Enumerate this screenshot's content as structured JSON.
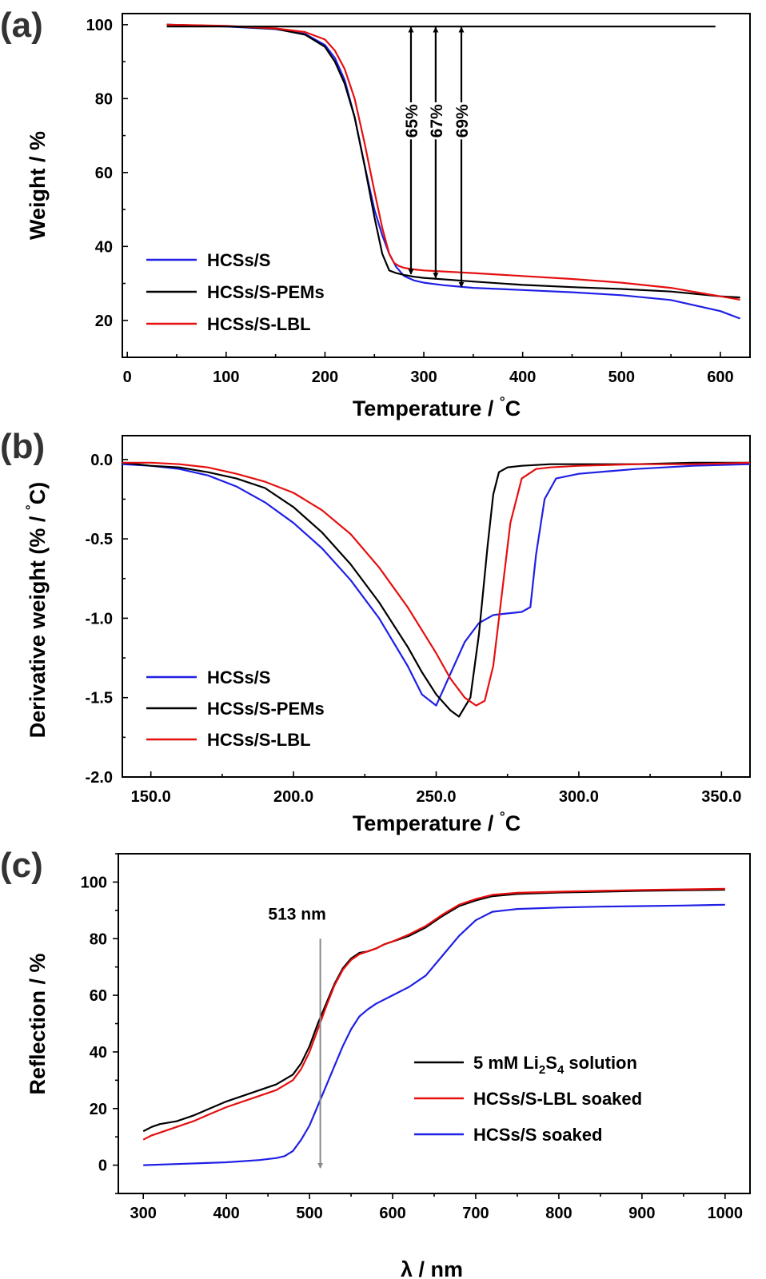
{
  "colors": {
    "blue": "#1f1fe6",
    "black": "#000000",
    "red": "#e60f0f",
    "gray": "#888888"
  },
  "chart_data": [
    {
      "panel": "(a)",
      "type": "line",
      "xlabel": "Temperature / °C",
      "ylabel": "Weight / %",
      "xlim": [
        -5,
        630
      ],
      "ylim": [
        10,
        103
      ],
      "xticks": [
        0,
        100,
        200,
        300,
        400,
        500,
        600
      ],
      "yticks": [
        20,
        40,
        60,
        80,
        100
      ],
      "legend_position": "bottom-left",
      "series": [
        {
          "name": "HCSs/S",
          "color": "blue",
          "x": [
            40,
            100,
            150,
            180,
            200,
            210,
            220,
            230,
            240,
            250,
            258,
            265,
            272,
            280,
            290,
            300,
            320,
            350,
            400,
            450,
            500,
            550,
            600,
            620
          ],
          "y": [
            100,
            99.5,
            98.8,
            97.5,
            94.5,
            91,
            85,
            75,
            62,
            50,
            43,
            38,
            34.5,
            32,
            30.8,
            30.2,
            29.5,
            28.8,
            28.2,
            27.6,
            26.8,
            25.5,
            22.5,
            20.5
          ]
        },
        {
          "name": "HCSs/S-PEMs",
          "color": "black",
          "x": [
            40,
            100,
            150,
            180,
            200,
            210,
            220,
            230,
            240,
            250,
            258,
            265,
            272,
            280,
            290,
            300,
            350,
            400,
            450,
            500,
            550,
            600,
            620
          ],
          "y": [
            100,
            99.6,
            98.9,
            97.3,
            94,
            90,
            84,
            75,
            62,
            48,
            38,
            33.5,
            32.8,
            32.3,
            31.8,
            31.5,
            30.5,
            29.6,
            29,
            28.5,
            27.8,
            26.5,
            26.2
          ]
        },
        {
          "name": "HCSs/S-LBL",
          "color": "red",
          "x": [
            40,
            100,
            150,
            180,
            200,
            210,
            220,
            230,
            240,
            250,
            258,
            265,
            270,
            275,
            280,
            290,
            300,
            350,
            400,
            450,
            500,
            550,
            600,
            620
          ],
          "y": [
            100,
            99.7,
            99,
            98,
            96,
            93,
            88,
            80,
            68,
            55,
            45,
            38,
            35.5,
            34.7,
            34.2,
            33.8,
            33.5,
            32.8,
            32,
            31.2,
            30.2,
            28.8,
            26.5,
            25.6
          ]
        },
        {
          "name": "",
          "color": "black",
          "x": [
            40,
            595
          ],
          "y": [
            99.5,
            99.5
          ]
        }
      ],
      "annotations": [
        {
          "label": "65%",
          "x": 287,
          "y_top": 99.5,
          "y_bottom": 32.3
        },
        {
          "label": "67%",
          "x": 312,
          "y_top": 99.5,
          "y_bottom": 31.3
        },
        {
          "label": "69%",
          "x": 338,
          "y_top": 99.5,
          "y_bottom": 28.8
        }
      ]
    },
    {
      "panel": "(b)",
      "type": "line",
      "xlabel": "Temperature / °C",
      "ylabel": "Derivative weight (% / °C)",
      "xlim": [
        140,
        360
      ],
      "ylim": [
        -2.0,
        0.15
      ],
      "xticks": [
        150,
        200,
        250,
        300,
        350
      ],
      "yticks": [
        -2.0,
        -1.5,
        -1.0,
        -0.5,
        0.0
      ],
      "legend_position": "bottom-left",
      "series": [
        {
          "name": "HCSs/S",
          "color": "blue",
          "x": [
            140,
            150,
            160,
            170,
            180,
            190,
            200,
            210,
            220,
            230,
            240,
            245,
            250,
            255,
            260,
            265,
            270,
            275,
            280,
            283,
            285,
            288,
            292,
            300,
            320,
            340,
            360
          ],
          "y": [
            -0.03,
            -0.04,
            -0.06,
            -0.1,
            -0.17,
            -0.27,
            -0.4,
            -0.56,
            -0.76,
            -1.0,
            -1.3,
            -1.48,
            -1.55,
            -1.35,
            -1.15,
            -1.03,
            -0.98,
            -0.97,
            -0.96,
            -0.93,
            -0.6,
            -0.25,
            -0.12,
            -0.09,
            -0.06,
            -0.04,
            -0.03
          ]
        },
        {
          "name": "HCSs/S-PEMs",
          "color": "black",
          "x": [
            140,
            150,
            160,
            170,
            180,
            190,
            200,
            210,
            220,
            230,
            240,
            245,
            250,
            255,
            258,
            262,
            265,
            268,
            270,
            272,
            275,
            280,
            290,
            300,
            320,
            340,
            360
          ],
          "y": [
            -0.02,
            -0.04,
            -0.05,
            -0.08,
            -0.12,
            -0.18,
            -0.3,
            -0.46,
            -0.66,
            -0.9,
            -1.18,
            -1.34,
            -1.48,
            -1.58,
            -1.62,
            -1.5,
            -1.1,
            -0.55,
            -0.22,
            -0.08,
            -0.05,
            -0.04,
            -0.03,
            -0.03,
            -0.03,
            -0.02,
            -0.02
          ]
        },
        {
          "name": "HCSs/S-LBL",
          "color": "red",
          "x": [
            140,
            150,
            160,
            170,
            180,
            190,
            200,
            210,
            220,
            230,
            240,
            250,
            255,
            260,
            264,
            267,
            270,
            273,
            276,
            280,
            285,
            290,
            300,
            320,
            340,
            360
          ],
          "y": [
            -0.02,
            -0.02,
            -0.03,
            -0.05,
            -0.09,
            -0.14,
            -0.21,
            -0.32,
            -0.47,
            -0.68,
            -0.93,
            -1.22,
            -1.38,
            -1.5,
            -1.55,
            -1.52,
            -1.3,
            -0.85,
            -0.4,
            -0.12,
            -0.06,
            -0.05,
            -0.04,
            -0.03,
            -0.03,
            -0.02
          ]
        }
      ]
    },
    {
      "panel": "(c)",
      "type": "line",
      "xlabel": "λ / nm",
      "ylabel": "Reflection / %",
      "xlim": [
        270,
        1030
      ],
      "ylim": [
        -10,
        110
      ],
      "xticks": [
        300,
        400,
        500,
        600,
        700,
        800,
        900,
        1000
      ],
      "yticks": [
        0,
        20,
        40,
        60,
        80,
        100
      ],
      "legend_position": "bottom-right",
      "series": [
        {
          "name": "5 mM Li2S4 solution",
          "color": "black",
          "x": [
            300,
            310,
            320,
            340,
            360,
            380,
            400,
            420,
            440,
            460,
            480,
            490,
            500,
            510,
            520,
            530,
            540,
            550,
            560,
            570,
            580,
            590,
            600,
            620,
            640,
            660,
            680,
            700,
            720,
            750,
            800,
            850,
            900,
            950,
            1000
          ],
          "y": [
            12,
            13.5,
            14.5,
            15.5,
            17.5,
            20,
            22.5,
            24.5,
            26.5,
            28.5,
            32,
            36,
            42,
            50,
            57,
            64,
            69.5,
            73,
            75,
            75.5,
            76.5,
            78,
            79,
            81,
            84,
            88,
            91.5,
            93.5,
            95,
            95.8,
            96.3,
            96.6,
            96.9,
            97.1,
            97.3
          ]
        },
        {
          "name": "HCSs/S-LBL soaked",
          "color": "red",
          "x": [
            300,
            310,
            320,
            340,
            360,
            380,
            400,
            420,
            440,
            460,
            480,
            490,
            500,
            510,
            520,
            530,
            540,
            550,
            560,
            570,
            580,
            590,
            600,
            620,
            640,
            660,
            680,
            700,
            720,
            750,
            800,
            850,
            900,
            950,
            1000
          ],
          "y": [
            9,
            10.5,
            11.5,
            13.5,
            15.5,
            18,
            20.5,
            22.5,
            24.5,
            26.5,
            30,
            34,
            40,
            48,
            56,
            63.5,
            69,
            72.5,
            74.5,
            75.5,
            76.5,
            78,
            79,
            81.5,
            84.5,
            88.5,
            92,
            94,
            95.5,
            96.2,
            96.6,
            96.9,
            97.2,
            97.4,
            97.6
          ]
        },
        {
          "name": "HCSs/S soaked",
          "color": "blue",
          "x": [
            300,
            350,
            400,
            440,
            460,
            470,
            480,
            490,
            500,
            510,
            520,
            530,
            540,
            550,
            560,
            570,
            580,
            600,
            620,
            640,
            660,
            680,
            700,
            720,
            750,
            800,
            850,
            900,
            950,
            1000
          ],
          "y": [
            0,
            0.5,
            1,
            1.8,
            2.5,
            3.2,
            5,
            9,
            14,
            21,
            28,
            35,
            42,
            48,
            52.5,
            55,
            57,
            60,
            63,
            67,
            74,
            81,
            86.5,
            89.5,
            90.5,
            91,
            91.3,
            91.5,
            91.7,
            92
          ]
        }
      ],
      "annotations": [
        {
          "label": "513 nm",
          "x": 513,
          "y_top": 80,
          "y_bottom": -1
        }
      ]
    }
  ]
}
